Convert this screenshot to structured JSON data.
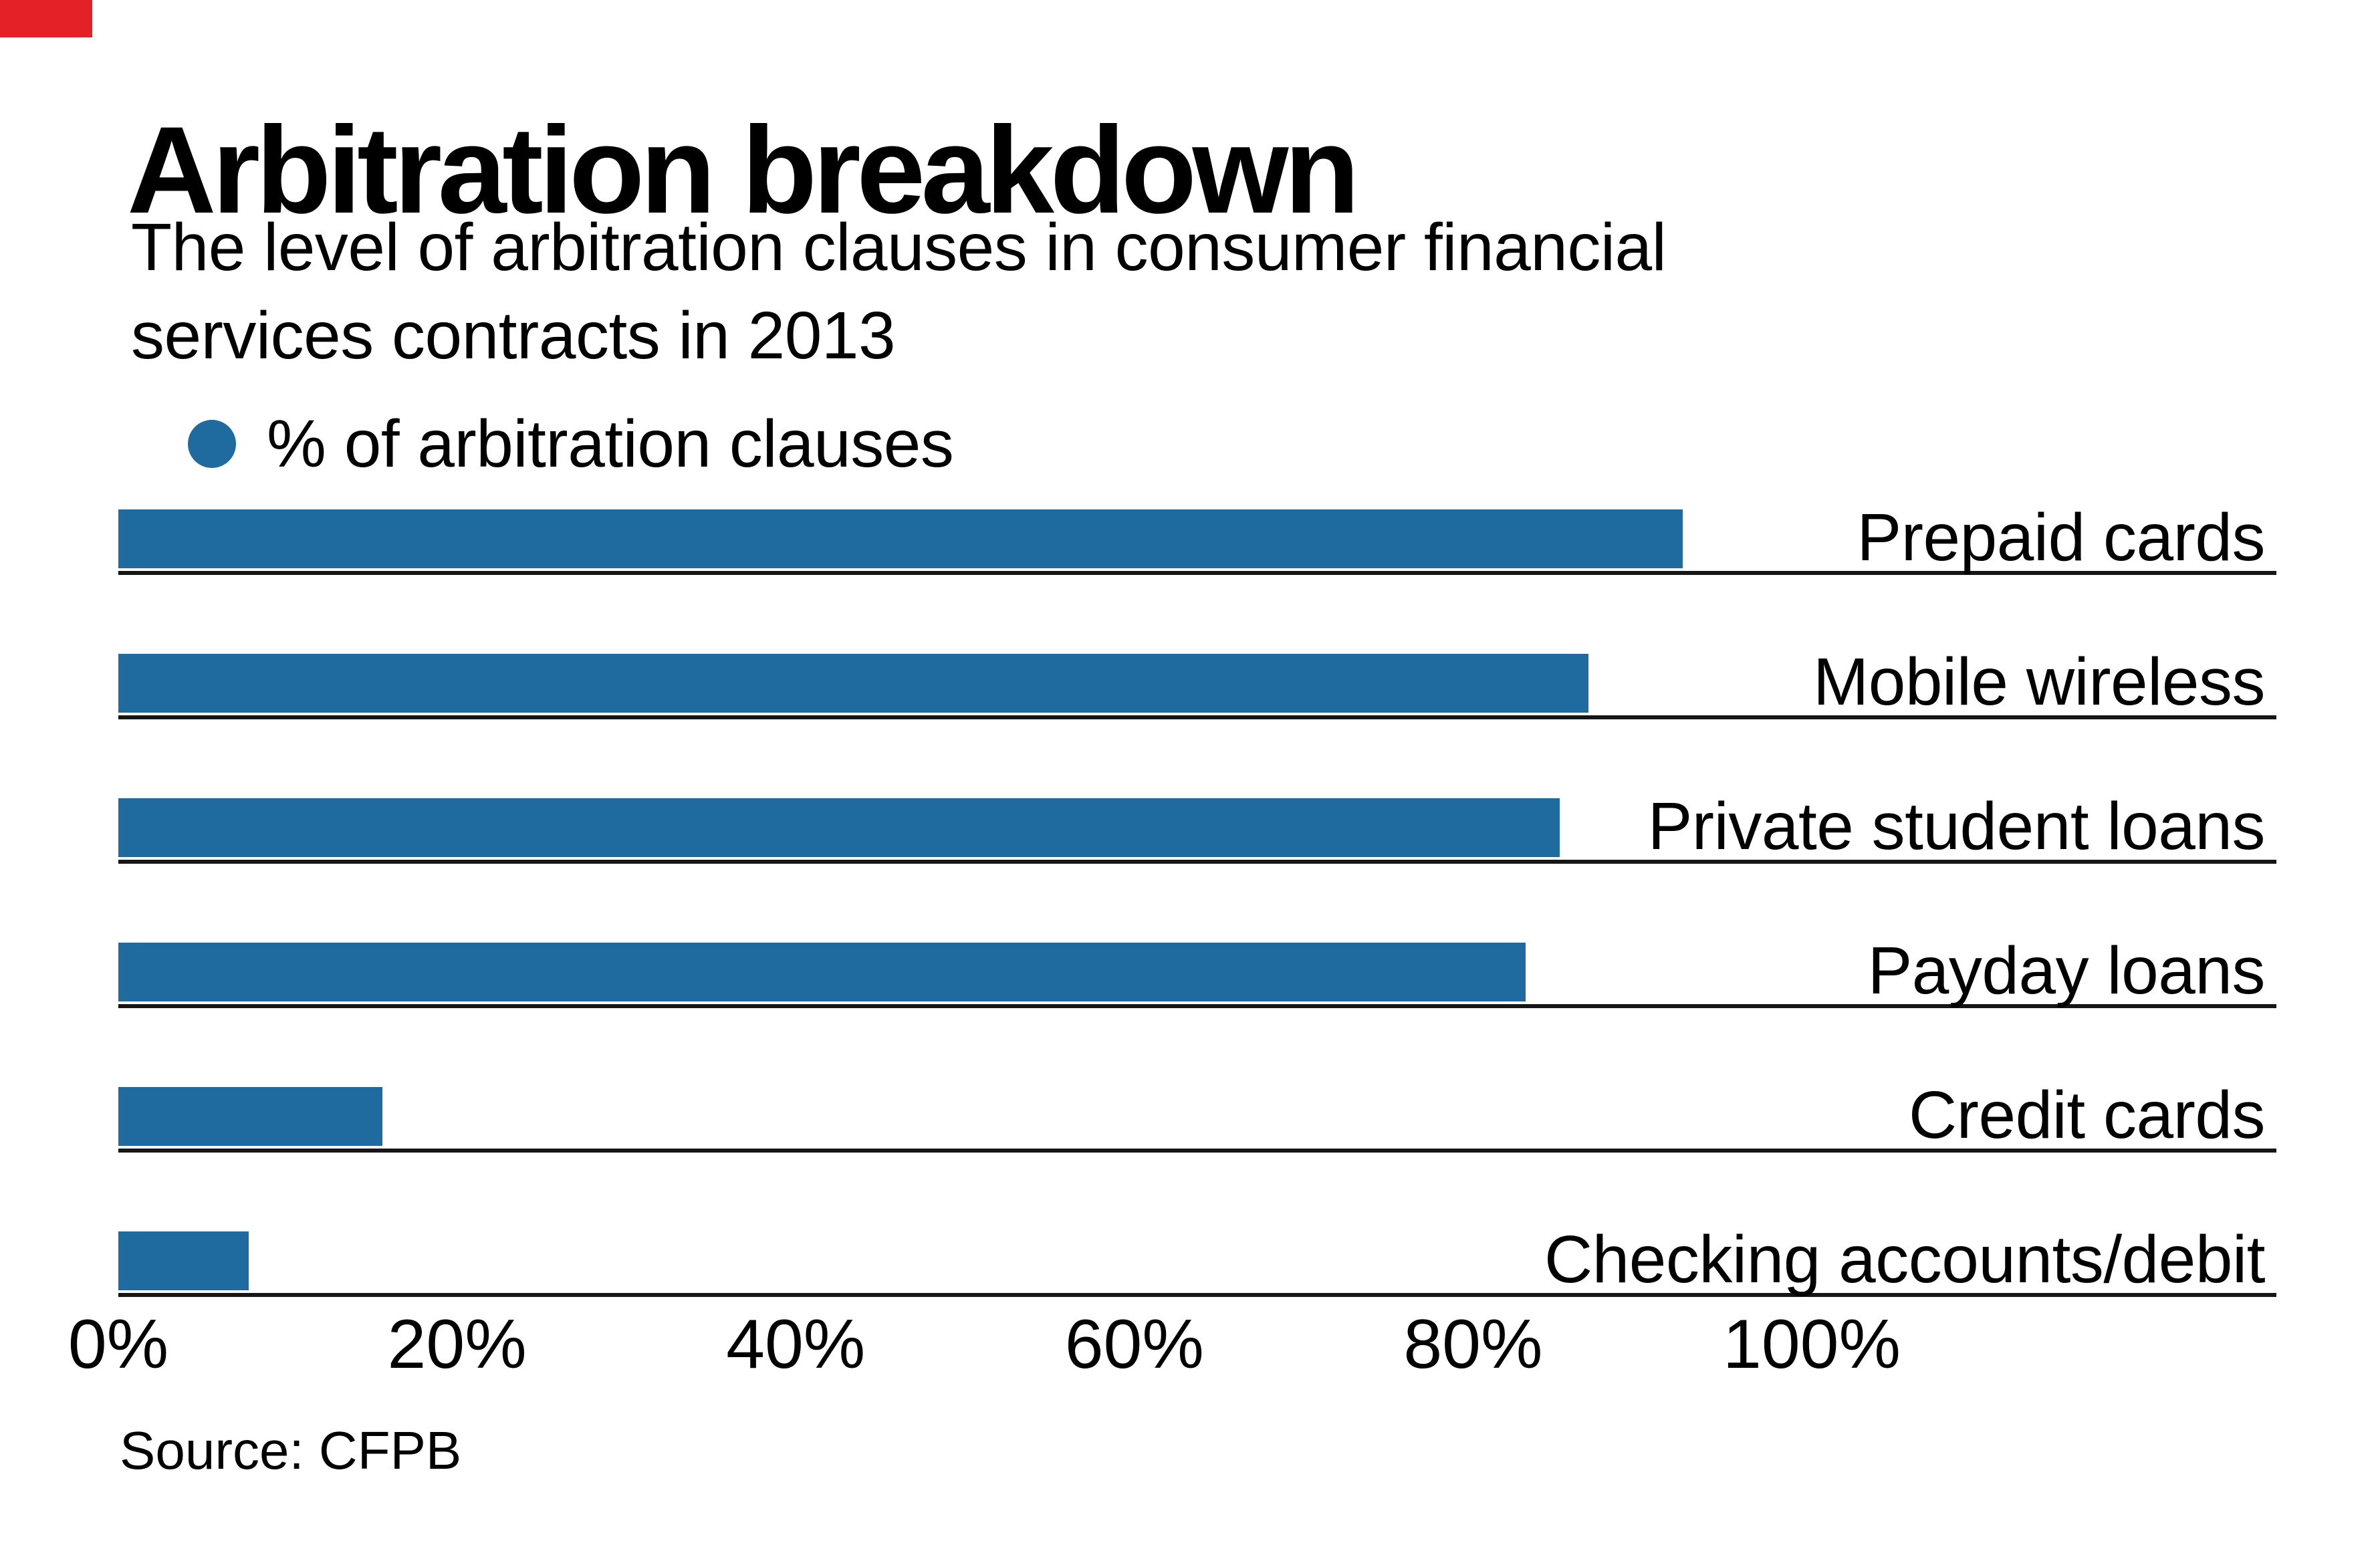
{
  "brand": {
    "flag_color": "#e32126"
  },
  "header": {
    "title": "Arbitration breakdown",
    "subtitle": "The level of arbitration clauses in consumer financial\nservices contracts in 2013"
  },
  "legend": {
    "label": "% of arbitration clauses",
    "swatch_color": "#1f6ba0"
  },
  "chart_data": {
    "type": "bar",
    "orientation": "horizontal",
    "title": "Arbitration breakdown",
    "subtitle": "The level of arbitration clauses in consumer financial services contracts in 2013",
    "legend_entries": [
      "% of arbitration clauses"
    ],
    "categories": [
      "Prepaid cards",
      "Mobile wireless",
      "Private student loans",
      "Payday loans",
      "Credit cards",
      "Checking accounts/debit"
    ],
    "values": [
      92.4,
      86.8,
      85.1,
      83.1,
      15.6,
      7.7
    ],
    "unit": "%",
    "xlim": [
      0,
      100
    ],
    "x_ticks": [
      {
        "label": "0%",
        "value": 0
      },
      {
        "label": "20%",
        "value": 20
      },
      {
        "label": "40%",
        "value": 40
      },
      {
        "label": "60%",
        "value": 60
      },
      {
        "label": "80%",
        "value": 80
      },
      {
        "label": "100%",
        "value": 100
      }
    ],
    "bar_color": "#1f6ba0",
    "baseline_color": "#161616",
    "grid": false,
    "legend_position": "top-left",
    "value_labels_shown": false
  },
  "source": {
    "label": "Source: CFPB"
  }
}
